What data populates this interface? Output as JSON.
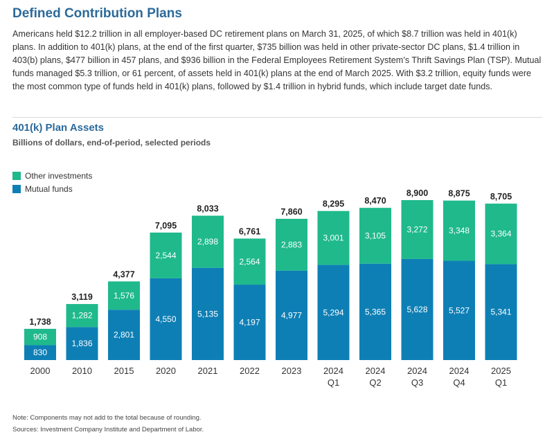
{
  "header": {
    "title": "Defined Contribution Plans",
    "intro": "Americans held $12.2 trillion in all employer-based DC retirement plans on March 31, 2025, of which $8.7 trillion was held in 401(k) plans. In addition to 401(k) plans, at the end of the first quarter, $735 billion was held in other private-sector DC plans, $1.4 trillion in 403(b) plans, $477 billion in 457 plans, and $936 billion in the Federal Employees Retirement System’s Thrift Savings Plan (TSP). Mutual funds managed $5.3 trillion, or 61 percent, of assets held in 401(k) plans at the end of March 2025. With $3.2 trillion, equity funds were the most common type of funds held in 401(k) plans, followed by $1.4 trillion in hybrid funds, which include target date funds."
  },
  "chart_data": {
    "type": "bar",
    "stacked": true,
    "title": "401(k) Plan Assets",
    "subtitle": "Billions of dollars, end-of-period, selected periods",
    "categories": [
      [
        "2000"
      ],
      [
        "2010"
      ],
      [
        "2015"
      ],
      [
        "2020"
      ],
      [
        "2021"
      ],
      [
        "2022"
      ],
      [
        "2023"
      ],
      [
        "2024",
        "Q1"
      ],
      [
        "2024",
        "Q2"
      ],
      [
        "2024",
        "Q3"
      ],
      [
        "2024",
        "Q4"
      ],
      [
        "2025",
        "Q1"
      ]
    ],
    "series": [
      {
        "name": "Mutual funds",
        "color": "#0e7fb5",
        "values": [
          830,
          1836,
          2801,
          4550,
          5135,
          4197,
          4977,
          5294,
          5365,
          5628,
          5527,
          5341
        ],
        "labels": [
          "830",
          "1,836",
          "2,801",
          "4,550",
          "5,135",
          "4,197",
          "4,977",
          "5,294",
          "5,365",
          "5,628",
          "5,527",
          "5,341"
        ]
      },
      {
        "name": "Other investments",
        "color": "#1fb98c",
        "values": [
          908,
          1282,
          1576,
          2544,
          2898,
          2564,
          2883,
          3001,
          3105,
          3272,
          3348,
          3364
        ],
        "labels": [
          "908",
          "1,282",
          "1,576",
          "2,544",
          "2,898",
          "2,564",
          "2,883",
          "3,001",
          "3,105",
          "3,272",
          "3,348",
          "3,364"
        ]
      }
    ],
    "totals": [
      1738,
      3119,
      4377,
      7095,
      8033,
      6761,
      7860,
      8295,
      8470,
      8900,
      8875,
      8705
    ],
    "total_labels": [
      "1,738",
      "3,119",
      "4,377",
      "7,095",
      "8,033",
      "6,761",
      "7,860",
      "8,295",
      "8,470",
      "8,900",
      "8,875",
      "8,705"
    ],
    "legend": [
      "Other investments",
      "Mutual funds"
    ],
    "ylim": [
      0,
      8900
    ]
  },
  "footer": {
    "note": "Note: Components may not add to the total because of rounding.",
    "source": "Sources: Investment Company Institute and Department of Labor."
  }
}
